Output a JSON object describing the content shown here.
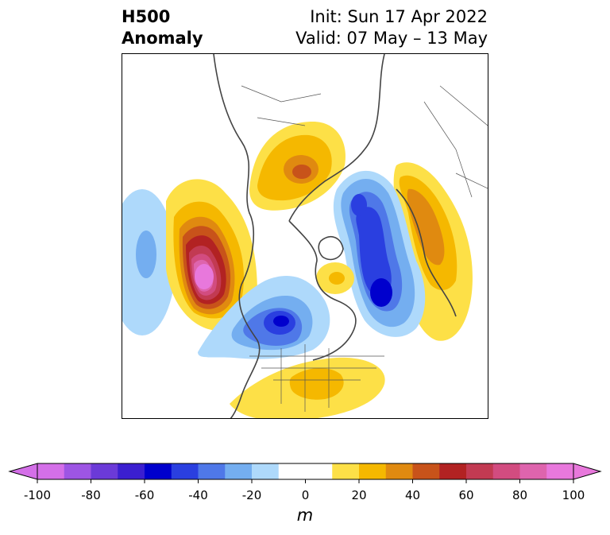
{
  "header": {
    "title_line1": "H500",
    "title_line2": "Anomaly",
    "init_text": "Init: Sun 17 Apr 2022",
    "valid_text": "Valid: 07 May – 13 May"
  },
  "colorbar": {
    "units": "m",
    "ticks": [
      "-100",
      "-80",
      "-60",
      "-40",
      "-20",
      "0",
      "20",
      "40",
      "60",
      "80",
      "100"
    ],
    "levels": [
      -100,
      -90,
      -80,
      -70,
      -60,
      -50,
      -40,
      -30,
      -20,
      -10,
      10,
      20,
      30,
      40,
      50,
      60,
      70,
      80,
      90,
      100
    ],
    "colors": [
      "#d46fe8",
      "#9d55e4",
      "#6b3ad8",
      "#3b1fd0",
      "#0000cd",
      "#2a3fe0",
      "#4f78e8",
      "#74aef0",
      "#aed9fb",
      "#ffffff",
      "#fde047",
      "#f5b800",
      "#e08a10",
      "#c8531a",
      "#b22222",
      "#c23a52",
      "#d24c80",
      "#de64ad",
      "#e878dc"
    ],
    "under_color": "#d46fe8",
    "over_color": "#e878dc"
  },
  "map": {
    "projection": "north polar stereographic",
    "features": [
      {
        "name": "pacific-positive-anomaly",
        "sign": "positive",
        "peak_m": 100
      },
      {
        "name": "north-pacific-negative-anomaly",
        "sign": "negative",
        "peak_m": -30
      },
      {
        "name": "greenland-north-atlantic-negative-anomaly",
        "sign": "negative",
        "peak_m": -60
      },
      {
        "name": "central-north-america-negative-anomaly",
        "sign": "negative",
        "peak_m": -50
      },
      {
        "name": "siberia-positive-anomaly",
        "sign": "positive",
        "peak_m": 50
      },
      {
        "name": "europe-positive-anomaly",
        "sign": "positive",
        "peak_m": 40
      },
      {
        "name": "eastern-us-positive-anomaly",
        "sign": "positive",
        "peak_m": 30
      },
      {
        "name": "hudson-bay-positive-anomaly",
        "sign": "positive",
        "peak_m": 20
      }
    ]
  }
}
